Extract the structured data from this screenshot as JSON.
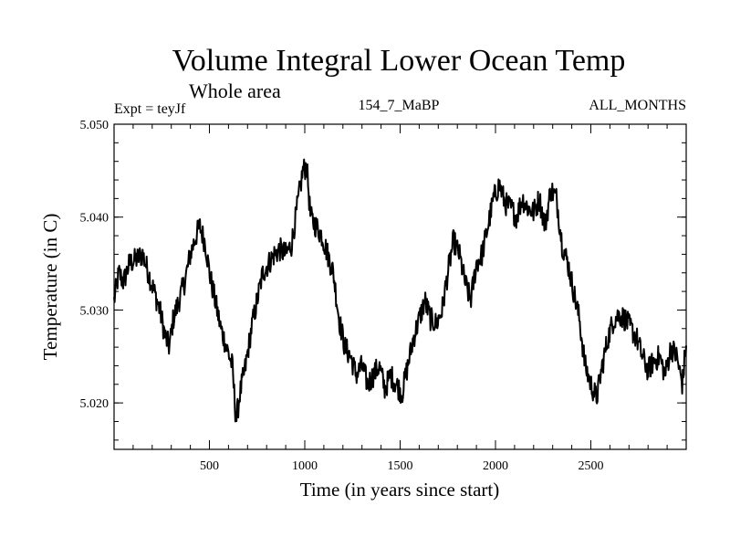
{
  "chart_data": {
    "type": "line",
    "title": "Volume Integral Lower Ocean Temp",
    "subtitle": "Whole area",
    "left_label": "Expt = teyJf",
    "center_label": "154_7_MaBP",
    "right_label": "ALL_MONTHS",
    "xlabel": "Time (in years since start)",
    "ylabel": "Temperature (in C)",
    "xlim": [
      0,
      3000
    ],
    "ylim": [
      5.015,
      5.05
    ],
    "x_ticks": [
      500,
      1000,
      1500,
      2000,
      2500
    ],
    "x_tick_labels": [
      "500",
      "1000",
      "1500",
      "2000",
      "2500"
    ],
    "y_ticks": [
      5.02,
      5.03,
      5.04,
      5.05
    ],
    "y_tick_labels": [
      "5.020",
      "5.030",
      "5.040",
      "5.050"
    ],
    "line_color": "#000000",
    "series": [
      {
        "name": "Volume Integral Lower Ocean Temp",
        "x": [
          0,
          25,
          50,
          80,
          120,
          150,
          180,
          210,
          240,
          270,
          290,
          310,
          340,
          370,
          400,
          430,
          450,
          480,
          500,
          530,
          560,
          590,
          620,
          640,
          660,
          690,
          720,
          750,
          780,
          810,
          840,
          870,
          900,
          930,
          960,
          990,
          1010,
          1030,
          1060,
          1090,
          1120,
          1150,
          1180,
          1210,
          1240,
          1270,
          1300,
          1330,
          1360,
          1390,
          1420,
          1450,
          1480,
          1510,
          1540,
          1570,
          1600,
          1630,
          1660,
          1690,
          1720,
          1750,
          1780,
          1810,
          1840,
          1870,
          1900,
          1930,
          1960,
          1990,
          2020,
          2050,
          2080,
          2110,
          2140,
          2170,
          2200,
          2230,
          2260,
          2290,
          2320,
          2350,
          2380,
          2410,
          2440,
          2470,
          2500,
          2530,
          2560,
          2590,
          2620,
          2650,
          2680,
          2710,
          2740,
          2770,
          2800,
          2830,
          2860,
          2890,
          2920,
          2950,
          2980,
          3000
        ],
        "values": [
          5.031,
          5.034,
          5.033,
          5.035,
          5.0355,
          5.036,
          5.034,
          5.032,
          5.03,
          5.027,
          5.026,
          5.029,
          5.031,
          5.033,
          5.036,
          5.038,
          5.039,
          5.037,
          5.034,
          5.031,
          5.028,
          5.026,
          5.024,
          5.018,
          5.021,
          5.024,
          5.028,
          5.031,
          5.034,
          5.035,
          5.036,
          5.0365,
          5.036,
          5.037,
          5.041,
          5.045,
          5.0455,
          5.04,
          5.039,
          5.038,
          5.036,
          5.034,
          5.029,
          5.026,
          5.025,
          5.023,
          5.024,
          5.022,
          5.023,
          5.024,
          5.0215,
          5.023,
          5.022,
          5.021,
          5.024,
          5.027,
          5.029,
          5.031,
          5.029,
          5.0285,
          5.03,
          5.034,
          5.0375,
          5.036,
          5.033,
          5.031,
          5.035,
          5.036,
          5.039,
          5.042,
          5.0435,
          5.0415,
          5.041,
          5.04,
          5.042,
          5.041,
          5.0405,
          5.042,
          5.039,
          5.043,
          5.042,
          5.037,
          5.035,
          5.032,
          5.029,
          5.024,
          5.022,
          5.0205,
          5.024,
          5.027,
          5.029,
          5.0295,
          5.029,
          5.028,
          5.027,
          5.025,
          5.0235,
          5.0245,
          5.025,
          5.023,
          5.026,
          5.025,
          5.022,
          5.0265
        ]
      }
    ]
  }
}
